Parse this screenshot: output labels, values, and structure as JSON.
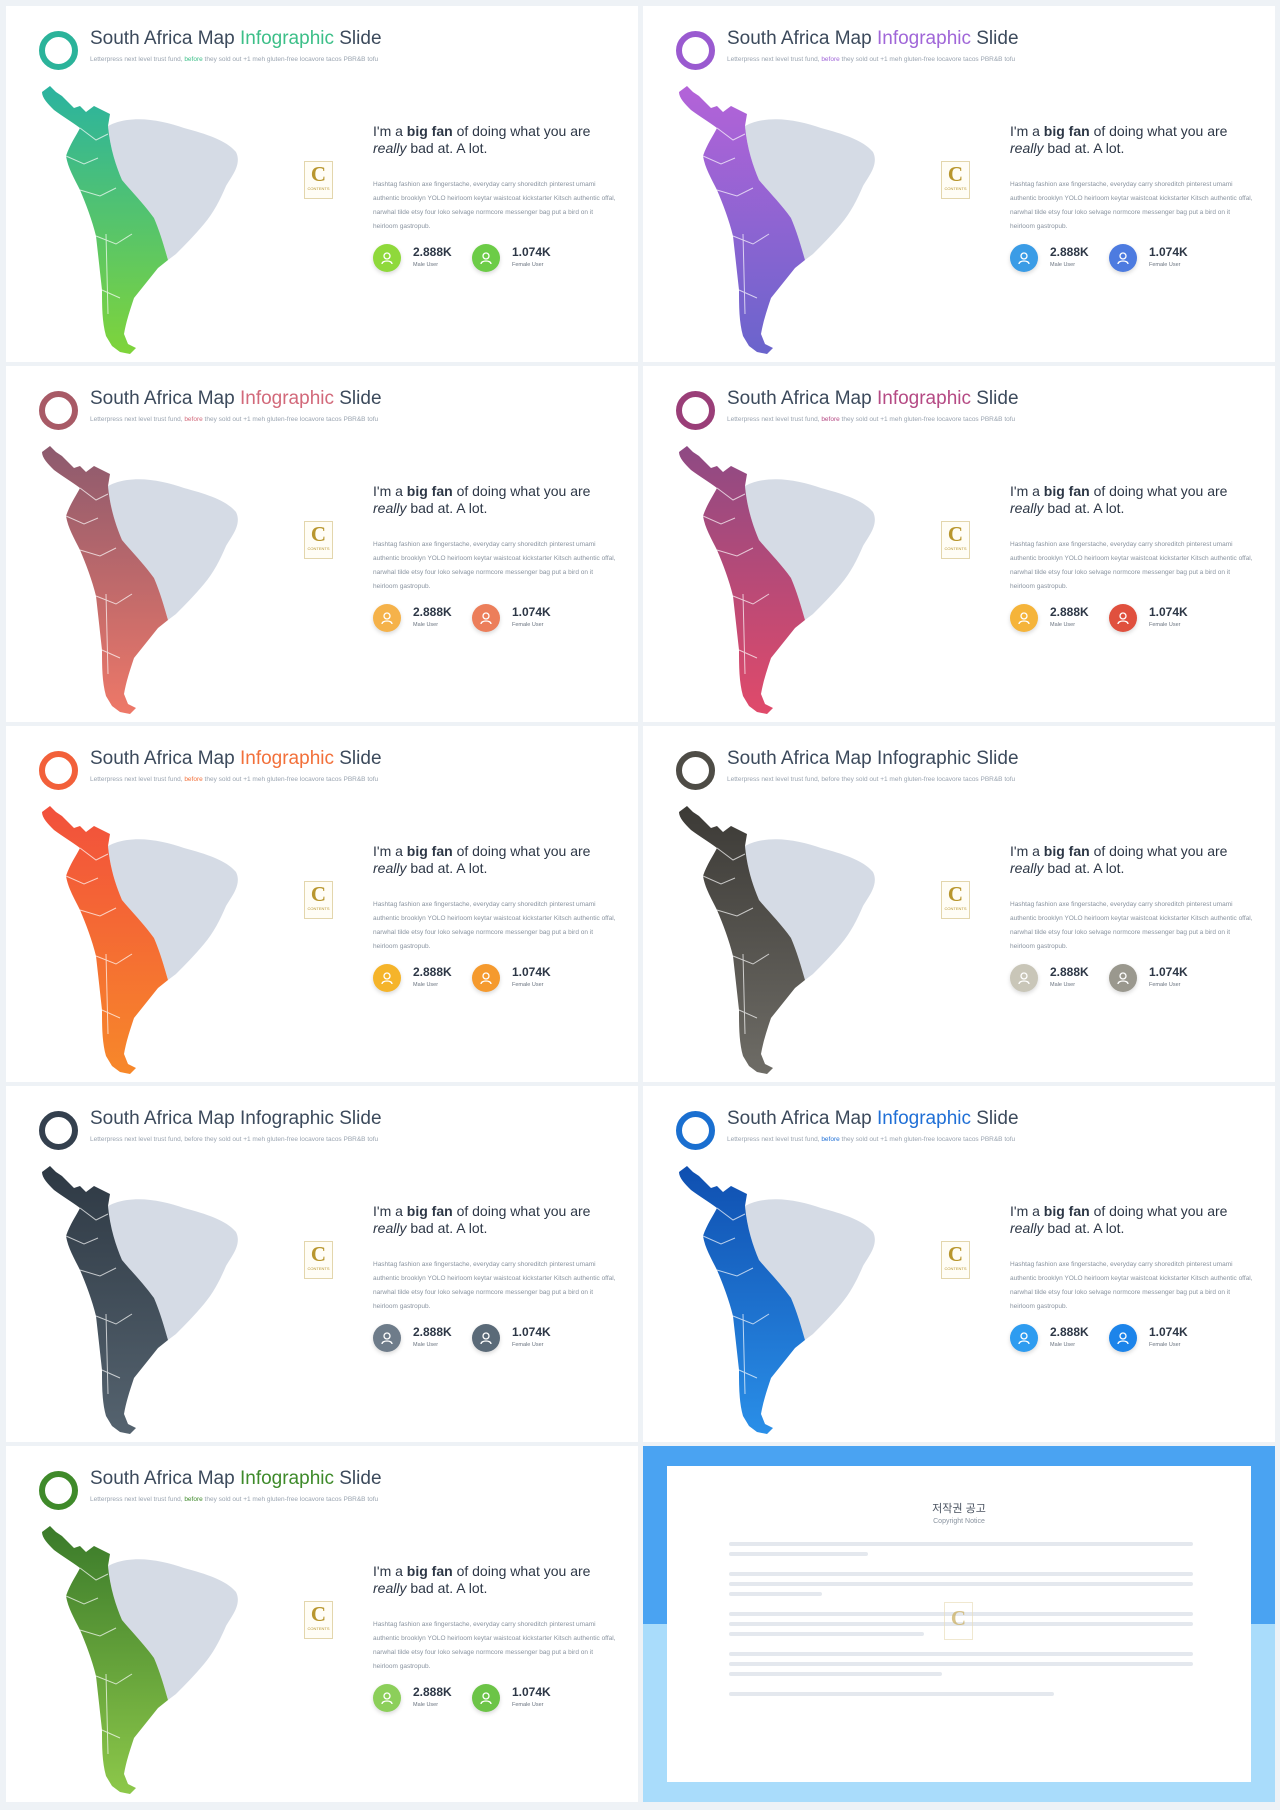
{
  "slides": [
    {
      "title_part1": "South Africa Map ",
      "title_highlight": "Infographic",
      "title_part3": " Slide",
      "subtitle_part1": "Letterpress next level trust fund, ",
      "subtitle_highlight": "before",
      "subtitle_part3": " they sold out +1 meh gluten-free locavore tacos PBR&B tofu",
      "headline_line1_pre": "I'm a ",
      "headline_line1_bold": "big fan",
      "headline_line1_post": " of doing what you are",
      "headline_line2_italic": "really",
      "headline_line2_post": " bad at. A lot.",
      "body_text": "Hashtag fashion axe fingerstache, everyday carry shoreditch pinterest umami authentic brooklyn YOLO heirloom keytar waistcoat kickstarter Kitsch authentic offal, narwhal tilde etsy four loko selvage normcore messenger bag put a bird on it heirloom gastropub.",
      "stat1_value": "2.888K",
      "stat1_label": "Male User",
      "stat2_value": "1.074K",
      "stat2_label": "Female User",
      "logo_letter": "C",
      "logo_word": "CONTENTS",
      "colors": {
        "ring": "#2bb39a",
        "highlight": "#3cbf88",
        "map_top": "#2ab3a0",
        "map_bottom": "#7fd43a",
        "stat1": "#8fd93b",
        "stat2": "#6ccc47",
        "subtitle_hl": "#3cbf88"
      }
    },
    {
      "title_part1": "South Africa Map ",
      "title_highlight": "Infographic",
      "title_part3": " Slide",
      "subtitle_part1": "Letterpress next level trust fund, ",
      "subtitle_highlight": "before",
      "subtitle_part3": " they sold out +1 meh gluten-free locavore tacos PBR&B tofu",
      "headline_line1_pre": "I'm a ",
      "headline_line1_bold": "big fan",
      "headline_line1_post": " of doing what you are",
      "headline_line2_italic": "really",
      "headline_line2_post": " bad at. A lot.",
      "body_text": "Hashtag fashion axe fingerstache, everyday carry shoreditch pinterest umami authentic brooklyn YOLO heirloom keytar waistcoat kickstarter Kitsch authentic offal, narwhal tilde etsy four loko selvage normcore messenger bag put a bird on it heirloom gastropub.",
      "stat1_value": "2.888K",
      "stat1_label": "Male User",
      "stat2_value": "1.074K",
      "stat2_label": "Female User",
      "logo_letter": "C",
      "logo_word": "CONTENTS",
      "colors": {
        "ring": "#9a5ad0",
        "highlight": "#a066d8",
        "map_top": "#b463d8",
        "map_bottom": "#6a64cc",
        "stat1": "#3a9ce6",
        "stat2": "#4d7be0",
        "subtitle_hl": "#a066d8"
      }
    },
    {
      "title_part1": "South Africa Map ",
      "title_highlight": "Infographic",
      "title_part3": " Slide",
      "subtitle_part1": "Letterpress next level trust fund, ",
      "subtitle_highlight": "before",
      "subtitle_part3": " they sold out +1 meh gluten-free locavore tacos PBR&B tofu",
      "headline_line1_pre": "I'm a ",
      "headline_line1_bold": "big fan",
      "headline_line1_post": " of doing what you are",
      "headline_line2_italic": "really",
      "headline_line2_post": " bad at. A lot.",
      "body_text": "Hashtag fashion axe fingerstache, everyday carry shoreditch pinterest umami authentic brooklyn YOLO heirloom keytar waistcoat kickstarter Kitsch authentic offal, narwhal tilde etsy four loko selvage normcore messenger bag put a bird on it heirloom gastropub.",
      "stat1_value": "2.888K",
      "stat1_label": "Male User",
      "stat2_value": "1.074K",
      "stat2_label": "Female User",
      "logo_letter": "C",
      "logo_word": "CONTENTS",
      "colors": {
        "ring": "#a85a66",
        "highlight": "#d2697a",
        "map_top": "#8c5a6e",
        "map_bottom": "#ee7868",
        "stat1": "#f5b24a",
        "stat2": "#ec7e5a",
        "subtitle_hl": "#d2697a"
      }
    },
    {
      "title_part1": "South Africa Map ",
      "title_highlight": "Infographic",
      "title_part3": " Slide",
      "subtitle_part1": "Letterpress next level trust fund, ",
      "subtitle_highlight": "before",
      "subtitle_part3": " they sold out +1 meh gluten-free locavore tacos PBR&B tofu",
      "headline_line1_pre": "I'm a ",
      "headline_line1_bold": "big fan",
      "headline_line1_post": " of doing what you are",
      "headline_line2_italic": "really",
      "headline_line2_post": " bad at. A lot.",
      "body_text": "Hashtag fashion axe fingerstache, everyday carry shoreditch pinterest umami authentic brooklyn YOLO heirloom keytar waistcoat kickstarter Kitsch authentic offal, narwhal tilde etsy four loko selvage normcore messenger bag put a bird on it heirloom gastropub.",
      "stat1_value": "2.888K",
      "stat1_label": "Male User",
      "stat2_value": "1.074K",
      "stat2_label": "Female User",
      "logo_letter": "C",
      "logo_word": "CONTENTS",
      "colors": {
        "ring": "#9a3e78",
        "highlight": "#b54a84",
        "map_top": "#8e4a84",
        "map_bottom": "#e04a6a",
        "stat1": "#f5b43a",
        "stat2": "#e0503e",
        "subtitle_hl": "#b54a84"
      }
    },
    {
      "title_part1": "South Africa Map ",
      "title_highlight": "Infographic",
      "title_part3": " Slide",
      "subtitle_part1": "Letterpress next level trust fund, ",
      "subtitle_highlight": "before",
      "subtitle_part3": " they sold out +1 meh gluten-free locavore tacos PBR&B tofu",
      "headline_line1_pre": "I'm a ",
      "headline_line1_bold": "big fan",
      "headline_line1_post": " of doing what you are",
      "headline_line2_italic": "really",
      "headline_line2_post": " bad at. A lot.",
      "body_text": "Hashtag fashion axe fingerstache, everyday carry shoreditch pinterest umami authentic brooklyn YOLO heirloom keytar waistcoat kickstarter Kitsch authentic offal, narwhal tilde etsy four loko selvage normcore messenger bag put a bird on it heirloom gastropub.",
      "stat1_value": "2.888K",
      "stat1_label": "Male User",
      "stat2_value": "1.074K",
      "stat2_label": "Female User",
      "logo_letter": "C",
      "logo_word": "CONTENTS",
      "colors": {
        "ring": "#f2603a",
        "highlight": "#f2703a",
        "map_top": "#f2503c",
        "map_bottom": "#f7882a",
        "stat1": "#f5b42a",
        "stat2": "#f59a2e",
        "subtitle_hl": "#f2703a"
      }
    },
    {
      "title_part1": "South Africa Map ",
      "title_highlight": "Infographic",
      "title_part3": " Slide",
      "subtitle_part1": "Letterpress next level trust fund, ",
      "subtitle_highlight": "before",
      "subtitle_part3": " they sold out +1 meh gluten-free locavore tacos PBR&B tofu",
      "headline_line1_pre": "I'm a ",
      "headline_line1_bold": "big fan",
      "headline_line1_post": " of doing what you are",
      "headline_line2_italic": "really",
      "headline_line2_post": " bad at. A lot.",
      "body_text": "Hashtag fashion axe fingerstache, everyday carry shoreditch pinterest umami authentic brooklyn YOLO heirloom keytar waistcoat kickstarter Kitsch authentic offal, narwhal tilde etsy four loko selvage normcore messenger bag put a bird on it heirloom gastropub.",
      "stat1_value": "2.888K",
      "stat1_label": "Male User",
      "stat2_value": "1.074K",
      "stat2_label": "Female User",
      "logo_letter": "C",
      "logo_word": "CONTENTS",
      "colors": {
        "ring": "#4e4c46",
        "highlight": "#3c4a5c",
        "map_top": "#3c3a36",
        "map_bottom": "#6e6c66",
        "stat1": "#c9c6b8",
        "stat2": "#9a988e",
        "subtitle_hl": "#9aa4b0"
      }
    },
    {
      "title_part1": "South Africa Map ",
      "title_highlight": "Infographic",
      "title_part3": " Slide",
      "subtitle_part1": "Letterpress next level trust fund, ",
      "subtitle_highlight": "before",
      "subtitle_part3": " they sold out +1 meh gluten-free locavore tacos PBR&B tofu",
      "headline_line1_pre": "I'm a ",
      "headline_line1_bold": "big fan",
      "headline_line1_post": " of doing what you are",
      "headline_line2_italic": "really",
      "headline_line2_post": " bad at. A lot.",
      "body_text": "Hashtag fashion axe fingerstache, everyday carry shoreditch pinterest umami authentic brooklyn YOLO heirloom keytar waistcoat kickstarter Kitsch authentic offal, narwhal tilde etsy four loko selvage normcore messenger bag put a bird on it heirloom gastropub.",
      "stat1_value": "2.888K",
      "stat1_label": "Male User",
      "stat2_value": "1.074K",
      "stat2_label": "Female User",
      "logo_letter": "C",
      "logo_word": "CONTENTS",
      "colors": {
        "ring": "#34404e",
        "highlight": "#3c4a5c",
        "map_top": "#2e3944",
        "map_bottom": "#55636f",
        "stat1": "#6e7c8a",
        "stat2": "#5a6a78",
        "subtitle_hl": "#9aa4b0"
      }
    },
    {
      "title_part1": "South Africa Map ",
      "title_highlight": "Infographic",
      "title_part3": " Slide",
      "subtitle_part1": "Letterpress next level trust fund, ",
      "subtitle_highlight": "before",
      "subtitle_part3": " they sold out +1 meh gluten-free locavore tacos PBR&B tofu",
      "headline_line1_pre": "I'm a ",
      "headline_line1_bold": "big fan",
      "headline_line1_post": " of doing what you are",
      "headline_line2_italic": "really",
      "headline_line2_post": " bad at. A lot.",
      "body_text": "Hashtag fashion axe fingerstache, everyday carry shoreditch pinterest umami authentic brooklyn YOLO heirloom keytar waistcoat kickstarter Kitsch authentic offal, narwhal tilde etsy four loko selvage normcore messenger bag put a bird on it heirloom gastropub.",
      "stat1_value": "2.888K",
      "stat1_label": "Male User",
      "stat2_value": "1.074K",
      "stat2_label": "Female User",
      "logo_letter": "C",
      "logo_word": "CONTENTS",
      "colors": {
        "ring": "#1a6fd0",
        "highlight": "#1f6fd6",
        "map_top": "#0f4fb0",
        "map_bottom": "#2a8fe8",
        "stat1": "#2e9cf0",
        "stat2": "#1c84ea",
        "subtitle_hl": "#1f6fd6"
      }
    },
    {
      "title_part1": "South Africa Map ",
      "title_highlight": "Infographic",
      "title_part3": " Slide",
      "subtitle_part1": "Letterpress next level trust fund, ",
      "subtitle_highlight": "before",
      "subtitle_part3": " they sold out +1 meh gluten-free locavore tacos PBR&B tofu",
      "headline_line1_pre": "I'm a ",
      "headline_line1_bold": "big fan",
      "headline_line1_post": " of doing what you are",
      "headline_line2_italic": "really",
      "headline_line2_post": " bad at. A lot.",
      "body_text": "Hashtag fashion axe fingerstache, everyday carry shoreditch pinterest umami authentic brooklyn YOLO heirloom keytar waistcoat kickstarter Kitsch authentic offal, narwhal tilde etsy four loko selvage normcore messenger bag put a bird on it heirloom gastropub.",
      "stat1_value": "2.888K",
      "stat1_label": "Male User",
      "stat2_value": "1.074K",
      "stat2_label": "Female User",
      "logo_letter": "C",
      "logo_word": "CONTENTS",
      "colors": {
        "ring": "#3f8a2a",
        "highlight": "#3e8a2a",
        "map_top": "#3a7a2a",
        "map_bottom": "#8dc84a",
        "stat1": "#8ccf5a",
        "stat2": "#6cc447",
        "subtitle_hl": "#3e8a2a"
      }
    }
  ],
  "notice": {
    "title": "저작권 공고",
    "subtitle": "Copyright Notice",
    "logo_letter": "C"
  }
}
